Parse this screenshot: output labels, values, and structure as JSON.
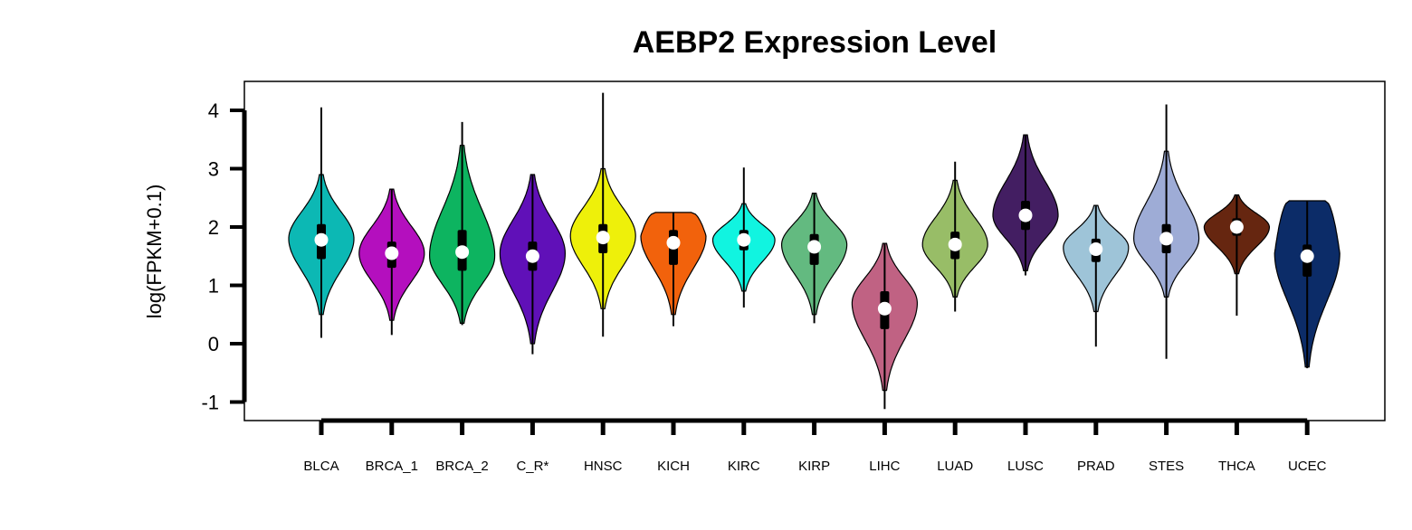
{
  "chart_data": {
    "type": "violin",
    "title": "AEBP2 Expression Level",
    "ylabel": "log(FPKM+0.1)",
    "xlabel": "",
    "ylim": [
      -1.3,
      4.5
    ],
    "yticks": [
      -1,
      0,
      1,
      2,
      3,
      4
    ],
    "grid": false,
    "categories": [
      "BLCA",
      "BRCA_1",
      "BRCA_2",
      "C_R*",
      "HNSC",
      "KICH",
      "KIRC",
      "KIRP",
      "LIHC",
      "LUAD",
      "LUSC",
      "PRAD",
      "STES",
      "THCA",
      "UCEC"
    ],
    "series": [
      {
        "category": "BLCA",
        "color": "#0cb8b4",
        "min": 0.1,
        "q1": 1.45,
        "median": 1.78,
        "q3": 2.05,
        "max": 4.05,
        "violin_top": 2.9,
        "violin_bottom": 0.5,
        "mode": 1.8,
        "halfwidth": 0.42
      },
      {
        "category": "BRCA_1",
        "color": "#b40fbe",
        "min": 0.15,
        "q1": 1.3,
        "median": 1.55,
        "q3": 1.75,
        "max": 2.65,
        "violin_top": 2.65,
        "violin_bottom": 0.4,
        "mode": 1.55,
        "halfwidth": 0.42
      },
      {
        "category": "BRCA_2",
        "color": "#0db460",
        "min": 0.32,
        "q1": 1.25,
        "median": 1.57,
        "q3": 1.95,
        "max": 3.8,
        "violin_top": 3.4,
        "violin_bottom": 0.35,
        "mode": 1.5,
        "halfwidth": 0.42
      },
      {
        "category": "C_R*",
        "color": "#6010b8",
        "min": -0.18,
        "q1": 1.25,
        "median": 1.5,
        "q3": 1.75,
        "max": 2.9,
        "violin_top": 2.9,
        "violin_bottom": 0.0,
        "mode": 1.55,
        "halfwidth": 0.42
      },
      {
        "category": "HNSC",
        "color": "#eef00a",
        "min": 0.12,
        "q1": 1.55,
        "median": 1.82,
        "q3": 2.05,
        "max": 4.3,
        "violin_top": 3.0,
        "violin_bottom": 0.6,
        "mode": 1.85,
        "halfwidth": 0.42
      },
      {
        "category": "KICH",
        "color": "#f2620c",
        "min": 0.3,
        "q1": 1.35,
        "median": 1.73,
        "q3": 1.95,
        "max": 2.25,
        "violin_top": 2.25,
        "violin_bottom": 0.5,
        "mode": 1.85,
        "halfwidth": 0.42,
        "flat_top": true
      },
      {
        "category": "KIRC",
        "color": "#11f4e0",
        "min": 0.62,
        "q1": 1.6,
        "median": 1.78,
        "q3": 1.95,
        "max": 3.02,
        "violin_top": 2.4,
        "violin_bottom": 0.9,
        "mode": 1.78,
        "halfwidth": 0.4
      },
      {
        "category": "KIRP",
        "color": "#63ba80",
        "min": 0.35,
        "q1": 1.35,
        "median": 1.66,
        "q3": 1.88,
        "max": 2.58,
        "violin_top": 2.58,
        "violin_bottom": 0.5,
        "mode": 1.7,
        "halfwidth": 0.42
      },
      {
        "category": "LIHC",
        "color": "#c06283",
        "min": -1.12,
        "q1": 0.25,
        "median": 0.6,
        "q3": 0.9,
        "max": 1.72,
        "violin_top": 1.72,
        "violin_bottom": -0.8,
        "mode": 0.7,
        "halfwidth": 0.42
      },
      {
        "category": "LUAD",
        "color": "#98bd67",
        "min": 0.55,
        "q1": 1.45,
        "median": 1.7,
        "q3": 1.92,
        "max": 3.12,
        "violin_top": 2.8,
        "violin_bottom": 0.8,
        "mode": 1.7,
        "halfwidth": 0.42
      },
      {
        "category": "LUSC",
        "color": "#431e62",
        "min": 1.17,
        "q1": 1.95,
        "median": 2.2,
        "q3": 2.45,
        "max": 3.58,
        "violin_top": 3.58,
        "violin_bottom": 1.25,
        "mode": 2.2,
        "halfwidth": 0.42
      },
      {
        "category": "PRAD",
        "color": "#9ec4d8",
        "min": -0.05,
        "q1": 1.4,
        "median": 1.62,
        "q3": 1.8,
        "max": 2.37,
        "violin_top": 2.37,
        "violin_bottom": 0.55,
        "mode": 1.65,
        "halfwidth": 0.42
      },
      {
        "category": "STES",
        "color": "#9eacd6",
        "min": -0.26,
        "q1": 1.55,
        "median": 1.8,
        "q3": 2.05,
        "max": 4.1,
        "violin_top": 3.3,
        "violin_bottom": 0.8,
        "mode": 1.8,
        "halfwidth": 0.42
      },
      {
        "category": "THCA",
        "color": "#662610",
        "min": 0.48,
        "q1": 1.85,
        "median": 2.0,
        "q3": 2.15,
        "max": 2.55,
        "violin_top": 2.55,
        "violin_bottom": 1.2,
        "mode": 2.0,
        "halfwidth": 0.42
      },
      {
        "category": "UCEC",
        "color": "#0c2c68",
        "min": -0.42,
        "q1": 1.15,
        "median": 1.5,
        "q3": 1.7,
        "max": 2.45,
        "violin_top": 2.45,
        "violin_bottom": -0.4,
        "mode": 1.55,
        "halfwidth": 0.42,
        "flat_top": true
      }
    ]
  }
}
